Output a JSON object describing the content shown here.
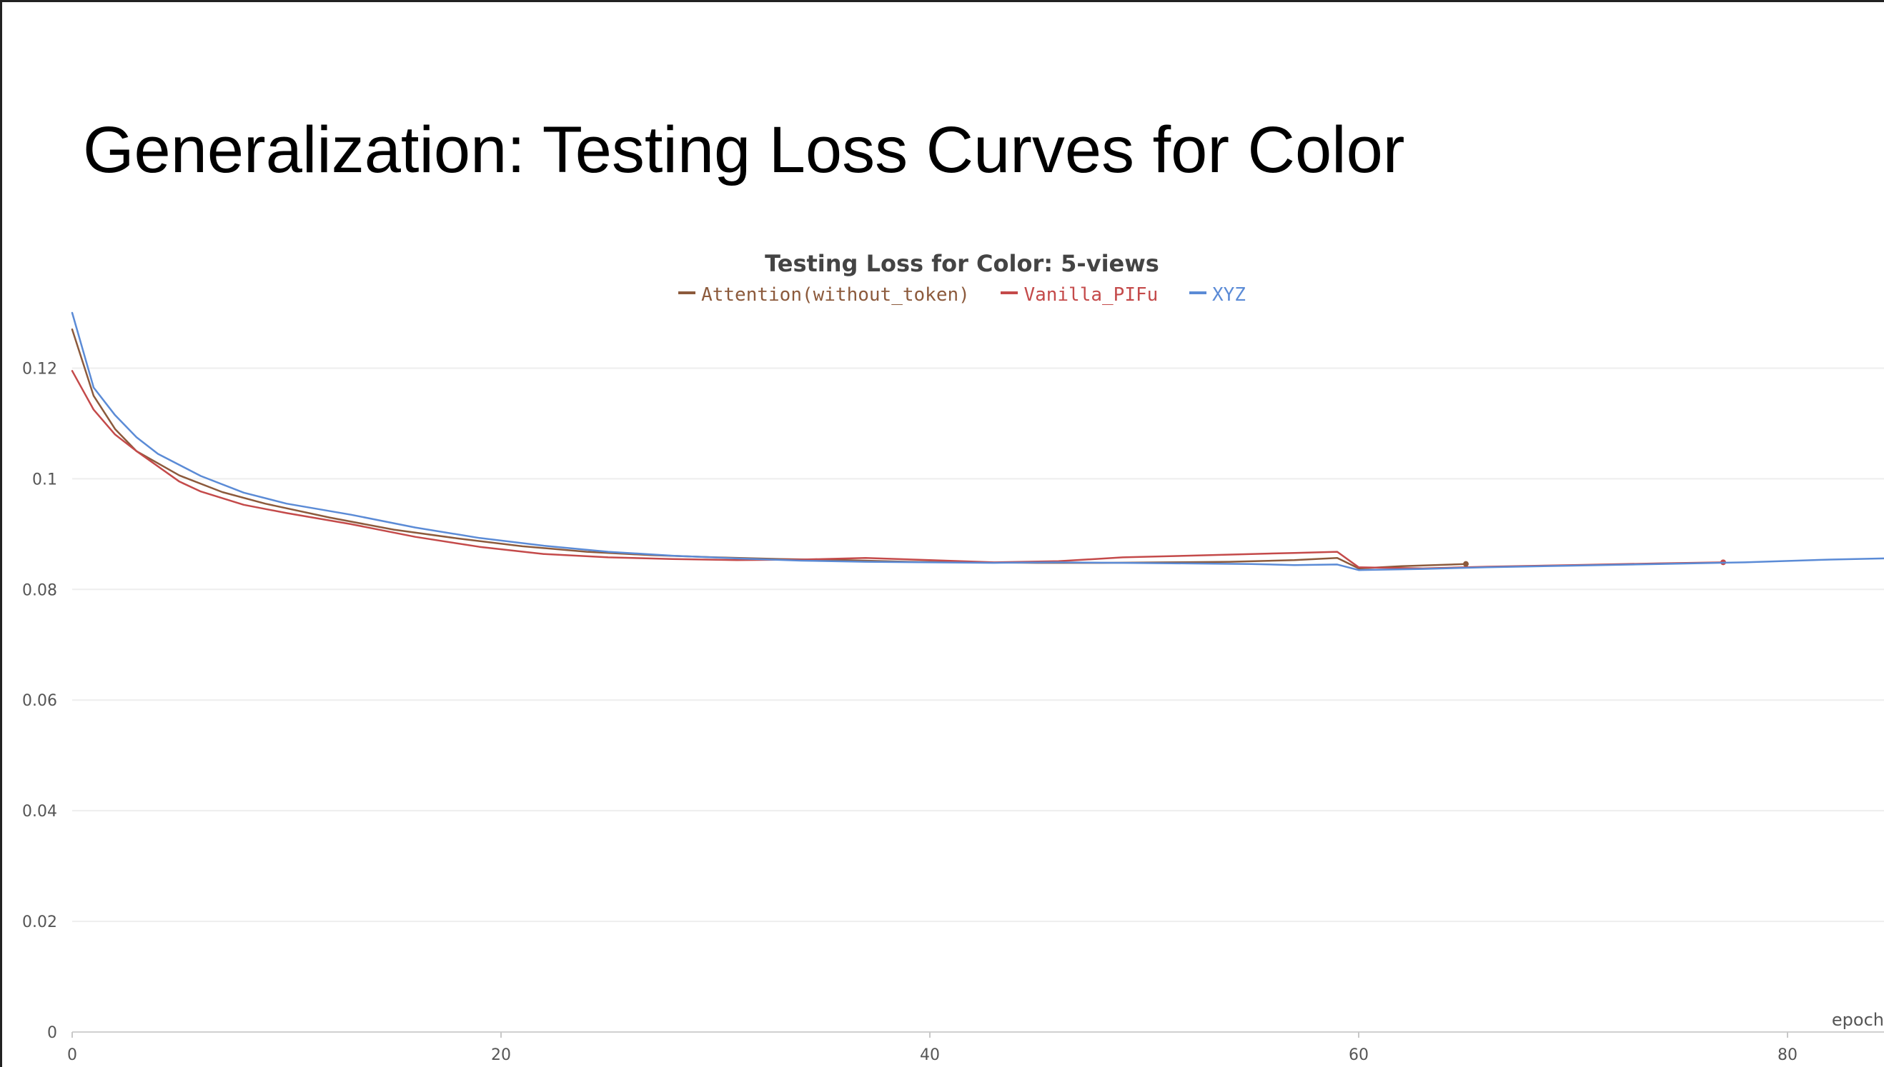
{
  "slide": {
    "title": "Generalization: Testing Loss Curves for Color"
  },
  "chart_data": {
    "type": "line",
    "title": "Testing Loss for Color: 5-views",
    "xlabel": "epoch",
    "ylabel": "",
    "xlim": [
      0,
      84.5
    ],
    "ylim": [
      0,
      0.13
    ],
    "x_ticks": [
      0,
      20,
      40,
      60,
      80
    ],
    "y_ticks": [
      0,
      0.02,
      0.04,
      0.06,
      0.08,
      0.1,
      0.12
    ],
    "x_tick_labels": [
      "0",
      "20",
      "40",
      "60",
      "80"
    ],
    "y_tick_labels": [
      "0",
      "0.02",
      "0.04",
      "0.06",
      "0.08",
      "0.1",
      "0.12"
    ],
    "grid": true,
    "legend_position": "top-center",
    "series": [
      {
        "name": "Attention(without_token)",
        "color": "#8c5a3c",
        "x": [
          0,
          1,
          2,
          3,
          5,
          7,
          9,
          12,
          15,
          18,
          21,
          24,
          27,
          30,
          33,
          36,
          39,
          42,
          45,
          48,
          51,
          54,
          57,
          59,
          60,
          62,
          65
        ],
        "y": [
          0.127,
          0.115,
          0.109,
          0.105,
          0.1006,
          0.0976,
          0.0955,
          0.093,
          0.0908,
          0.0892,
          0.0878,
          0.0868,
          0.0862,
          0.0858,
          0.0855,
          0.0853,
          0.085,
          0.0849,
          0.0848,
          0.0848,
          0.0849,
          0.085,
          0.0853,
          0.0857,
          0.0838,
          0.0842,
          0.0846
        ],
        "end_marker": true
      },
      {
        "name": "Vanilla_PIFu",
        "color": "#c44a4a",
        "x": [
          0,
          1,
          2,
          3,
          5,
          6,
          8,
          10,
          13,
          16,
          19,
          22,
          25,
          28,
          31,
          34,
          37,
          40,
          43,
          46,
          49,
          52,
          55,
          57,
          59,
          60,
          63,
          66,
          70,
          74,
          77
        ],
        "y": [
          0.1195,
          0.1125,
          0.108,
          0.105,
          0.0995,
          0.0977,
          0.0953,
          0.0938,
          0.0918,
          0.0895,
          0.0877,
          0.0864,
          0.0858,
          0.0855,
          0.0853,
          0.0854,
          0.0857,
          0.0853,
          0.0849,
          0.0851,
          0.0858,
          0.0861,
          0.0864,
          0.0866,
          0.0868,
          0.084,
          0.0838,
          0.0841,
          0.0844,
          0.0847,
          0.0849
        ],
        "end_marker": true
      },
      {
        "name": "XYZ",
        "color": "#5b8bd6",
        "x": [
          0,
          1,
          2,
          3,
          4,
          6,
          8,
          10,
          13,
          16,
          19,
          22,
          25,
          28,
          31,
          34,
          37,
          40,
          43,
          46,
          49,
          52,
          55,
          57,
          59,
          60,
          63,
          66,
          70,
          74,
          78,
          82,
          84.5
        ],
        "y": [
          0.13,
          0.1165,
          0.1115,
          0.1075,
          0.1045,
          0.1005,
          0.0975,
          0.0955,
          0.0935,
          0.0912,
          0.0893,
          0.0879,
          0.0868,
          0.0861,
          0.0856,
          0.0852,
          0.085,
          0.0849,
          0.0848,
          0.0849,
          0.0848,
          0.0847,
          0.0846,
          0.0844,
          0.0845,
          0.0835,
          0.0837,
          0.084,
          0.0843,
          0.0846,
          0.0849,
          0.0854,
          0.0856
        ],
        "end_marker": false
      }
    ]
  }
}
